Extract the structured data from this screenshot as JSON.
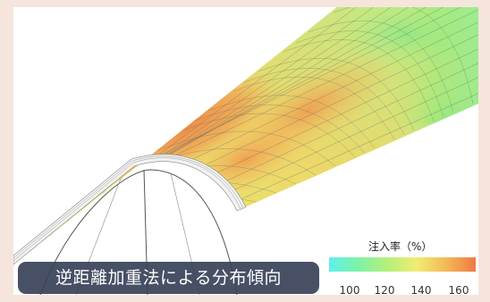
{
  "caption": "逆距離加重法による分布傾向",
  "legend": {
    "title": "注入率（%）",
    "ticks": [
      "100",
      "120",
      "140",
      "160"
    ],
    "colors": [
      "#5ff0ee",
      "#7ef2a6",
      "#b5f07a",
      "#f2ec72",
      "#f4b858",
      "#ef7a44"
    ]
  }
}
